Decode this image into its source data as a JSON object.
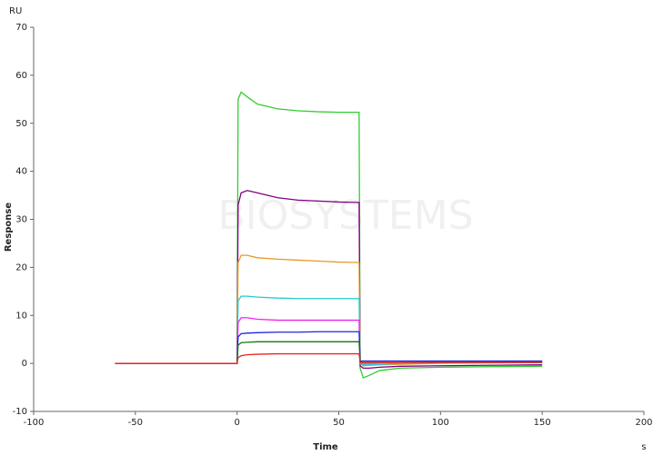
{
  "chart_data": {
    "type": "line",
    "y_unit": "RU",
    "ylabel": "Response",
    "xlabel": "Time",
    "x_unit": "s",
    "watermark": "BIOSYSTEMS",
    "xlim": [
      -100,
      200
    ],
    "xticks": [
      -100,
      -50,
      0,
      50,
      100,
      150,
      200
    ],
    "ylim": [
      -10,
      70
    ],
    "yticks": [
      -10,
      0,
      10,
      20,
      30,
      40,
      50,
      60,
      70
    ],
    "x": [
      -60,
      -40,
      -20,
      0,
      0.5,
      2,
      5,
      10,
      20,
      30,
      40,
      50,
      60,
      60.5,
      62,
      65,
      70,
      80,
      100,
      120,
      150
    ],
    "series": [
      {
        "color": "#33cc33",
        "values": [
          0,
          0,
          0,
          0,
          55,
          56.5,
          55.5,
          54,
          53,
          52.6,
          52.4,
          52.3,
          52.3,
          -1,
          -3,
          -2.5,
          -1.5,
          -1,
          -0.8,
          -0.7,
          -0.6
        ]
      },
      {
        "color": "#800080",
        "values": [
          0,
          0,
          0,
          0,
          33,
          35.5,
          36,
          35.5,
          34.5,
          34,
          33.8,
          33.6,
          33.5,
          -0.5,
          -1,
          -1,
          -0.8,
          -0.6,
          -0.5,
          -0.4,
          -0.3
        ]
      },
      {
        "color": "#e69a28",
        "values": [
          0,
          0,
          0,
          0,
          21,
          22.5,
          22.5,
          22,
          21.7,
          21.5,
          21.3,
          21.1,
          21,
          0,
          -0.5,
          -0.4,
          -0.3,
          -0.2,
          0,
          0.1,
          0.2
        ]
      },
      {
        "color": "#22cccc",
        "values": [
          0,
          0,
          0,
          0,
          13,
          14,
          14,
          13.8,
          13.6,
          13.5,
          13.5,
          13.5,
          13.5,
          0,
          -0.3,
          -0.3,
          -0.2,
          0,
          0.1,
          0.2,
          0.2
        ]
      },
      {
        "color": "#ee22ee",
        "values": [
          0,
          0,
          0,
          0,
          8.5,
          9.5,
          9.5,
          9.2,
          9,
          9,
          9,
          9,
          9,
          0.2,
          0,
          0,
          0.1,
          0.2,
          0.3,
          0.3,
          0.3
        ]
      },
      {
        "color": "#2222dd",
        "values": [
          0,
          0,
          0,
          0,
          5.5,
          6.2,
          6.3,
          6.4,
          6.5,
          6.5,
          6.6,
          6.6,
          6.6,
          0.5,
          0.5,
          0.5,
          0.5,
          0.5,
          0.5,
          0.5,
          0.5
        ]
      },
      {
        "color": "#117711",
        "values": [
          0,
          0,
          0,
          0,
          3.8,
          4.3,
          4.4,
          4.5,
          4.5,
          4.5,
          4.5,
          4.5,
          4.5,
          0.3,
          0.2,
          0.2,
          0.2,
          0.2,
          0.2,
          0.2,
          0.2
        ]
      },
      {
        "color": "#ee2222",
        "values": [
          0,
          0,
          0,
          0,
          1.2,
          1.6,
          1.8,
          1.9,
          2,
          2,
          2,
          2,
          2,
          0.2,
          0.2,
          0.2,
          0.2,
          0.2,
          0.2,
          0.2,
          0.2
        ]
      }
    ]
  }
}
